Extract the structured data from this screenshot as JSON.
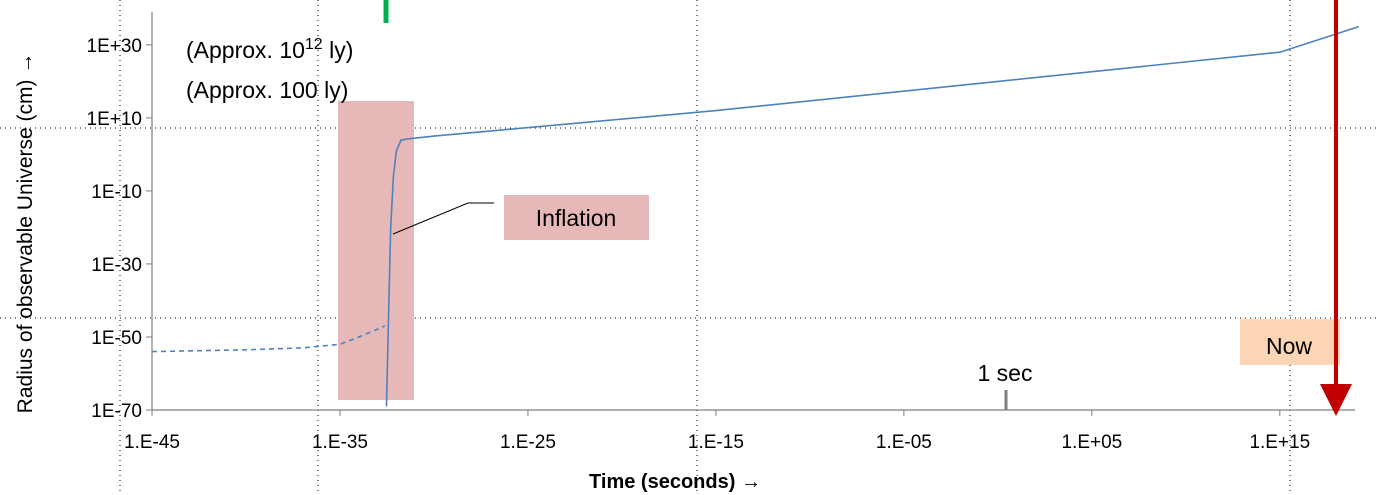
{
  "chart_data": {
    "type": "line",
    "xlabel": "Time (seconds) →",
    "ylabel": "Radius of observable Universe (cm) →",
    "x_scale": "log",
    "y_scale": "log",
    "xlim": [
      1e-45,
      1e+19
    ],
    "ylim": [
      1e-70,
      1e+39
    ],
    "x_ticks": [
      "1.E-45",
      "1.E-35",
      "1.E-25",
      "1.E-15",
      "1.E-05",
      "1.E+05",
      "1.E+15"
    ],
    "y_ticks": [
      "1E-70",
      "1E-50",
      "1E-30",
      "1E-10",
      "1E+10",
      "1E+30"
    ],
    "grid": false,
    "series": [
      {
        "style": "dashed",
        "color": "#4f81bd",
        "x": [
          1e-45,
          1e-40,
          1e-37,
          1e-35,
          1e-34,
          2.5e-33
        ],
        "y": [
          1e-54,
          3e-54,
          1e-53,
          1e-52,
          1e-50,
          1e-47
        ]
      },
      {
        "style": "solid",
        "color": "#4f81bd",
        "x": [
          3e-33,
          4e-33,
          5e-33,
          7e-33,
          1e-32,
          1.8e-32,
          2.5e-32,
          3e-32,
          1e-30,
          1e-15,
          1.0,
          1000000000000000.0,
          1.6e+19
        ],
        "y": [
          1e-69,
          1e-40,
          1e-20,
          1e-06,
          10.0,
          10000.0,
          10000.0,
          15000.0,
          100000.0,
          1000000000000.0,
          1e+20,
          1e+28,
          1e+35
        ]
      }
    ],
    "annotations": {
      "approx_large_prefix": "(Approx. 10",
      "approx_large_exp": "12",
      "approx_large_suffix": " ly)",
      "approx_small": "(Approx. 100 ly)",
      "inflation": "Inflation",
      "one_sec": "1 sec",
      "now": "Now"
    },
    "colors": {
      "inflation_band": "#e6b8b7",
      "inflation_label_bg": "#e6b8b7",
      "now_label_bg": "#fcd5b4",
      "now_arrow": "#c00000",
      "top_marker": "#00b050",
      "one_sec_marker": "#7f7f7f"
    }
  }
}
